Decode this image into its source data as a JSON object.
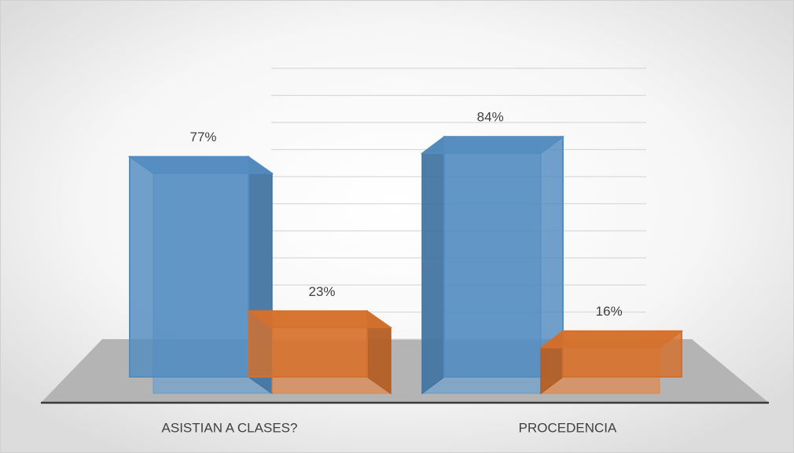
{
  "chart_data": {
    "type": "bar3d",
    "categories": [
      "ASISTIAN A CLASES?",
      "PROCEDENCIA"
    ],
    "series": [
      {
        "color": "#5b9bd5",
        "values": [
          77,
          84
        ],
        "value_labels": [
          "77%",
          "84%"
        ]
      },
      {
        "color": "#ed7d31",
        "values": [
          23,
          16
        ],
        "value_labels": [
          "23%",
          "16%"
        ]
      }
    ],
    "ylim": [
      0,
      100
    ],
    "yticks": [
      0,
      10,
      20,
      30,
      40,
      50,
      60,
      70,
      80,
      90,
      100
    ],
    "grid": true
  }
}
